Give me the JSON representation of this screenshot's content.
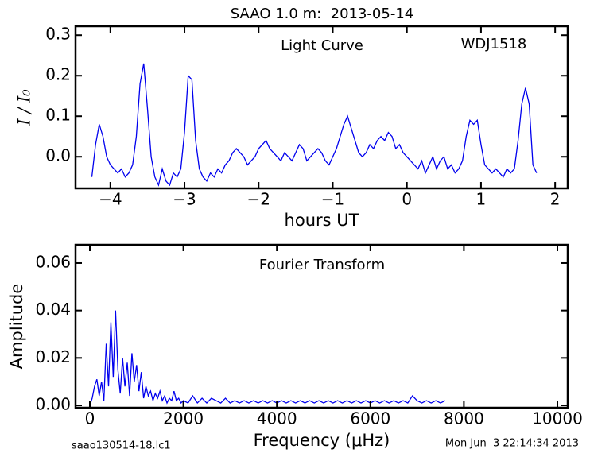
{
  "title": "SAAO 1.0 m:  2013-05-14",
  "footer": {
    "left": "saao130514-18.lc1",
    "right": "Mon Jun  3 22:14:34 2013"
  },
  "chart_data": [
    {
      "type": "line",
      "xlabel": "hours UT",
      "ylabel": "I / I₀",
      "annotations": [
        "Light Curve",
        "WDJ1518"
      ],
      "color": "#0000ee",
      "xlim": [
        -4.47,
        2.17
      ],
      "ylim": [
        -0.078,
        0.322
      ],
      "xticks": [
        {
          "value": -4,
          "label": "−4"
        },
        {
          "value": -3,
          "label": "−3"
        },
        {
          "value": -2,
          "label": "−2"
        },
        {
          "value": -1,
          "label": "−1"
        },
        0,
        1,
        2
      ],
      "yticks": [
        {
          "value": 0,
          "label": "0.0"
        },
        0.1,
        0.2,
        0.3
      ],
      "x": [
        -4.25,
        -4.2,
        -4.15,
        -4.1,
        -4.05,
        -4,
        -3.95,
        -3.9,
        -3.85,
        -3.8,
        -3.75,
        -3.7,
        -3.65,
        -3.6,
        -3.55,
        -3.5,
        -3.45,
        -3.4,
        -3.35,
        -3.3,
        -3.25,
        -3.2,
        -3.15,
        -3.1,
        -3.05,
        -3,
        -2.95,
        -2.9,
        -2.85,
        -2.8,
        -2.75,
        -2.7,
        -2.65,
        -2.6,
        -2.55,
        -2.5,
        -2.45,
        -2.4,
        -2.35,
        -2.3,
        -2.25,
        -2.2,
        -2.15,
        -2.1,
        -2.05,
        -2,
        -1.95,
        -1.9,
        -1.85,
        -1.8,
        -1.75,
        -1.7,
        -1.65,
        -1.6,
        -1.55,
        -1.5,
        -1.45,
        -1.4,
        -1.35,
        -1.3,
        -1.25,
        -1.2,
        -1.15,
        -1.1,
        -1.05,
        -1,
        -0.95,
        -0.9,
        -0.85,
        -0.8,
        -0.75,
        -0.7,
        -0.65,
        -0.6,
        -0.55,
        -0.5,
        -0.45,
        -0.4,
        -0.35,
        -0.3,
        -0.25,
        -0.2,
        -0.15,
        -0.1,
        -0.05,
        0,
        0.05,
        0.1,
        0.15,
        0.2,
        0.25,
        0.3,
        0.35,
        0.4,
        0.45,
        0.5,
        0.55,
        0.6,
        0.65,
        0.7,
        0.75,
        0.8,
        0.85,
        0.9,
        0.95,
        1,
        1.05,
        1.1,
        1.15,
        1.2,
        1.25,
        1.3,
        1.35,
        1.4,
        1.45,
        1.5,
        1.55,
        1.6,
        1.65,
        1.7,
        1.75
      ],
      "values": [
        -0.05,
        0.03,
        0.08,
        0.05,
        0,
        -0.02,
        -0.03,
        -0.04,
        -0.03,
        -0.05,
        -0.04,
        -0.02,
        0.05,
        0.18,
        0.23,
        0.12,
        0,
        -0.05,
        -0.07,
        -0.03,
        -0.06,
        -0.07,
        -0.04,
        -0.05,
        -0.03,
        0.06,
        0.2,
        0.19,
        0.04,
        -0.03,
        -0.05,
        -0.06,
        -0.04,
        -0.05,
        -0.03,
        -0.04,
        -0.02,
        -0.01,
        0.01,
        0.02,
        0.01,
        0,
        -0.02,
        -0.01,
        0,
        0.02,
        0.03,
        0.04,
        0.02,
        0.01,
        0,
        -0.01,
        0.01,
        0,
        -0.01,
        0.01,
        0.03,
        0.02,
        -0.01,
        0,
        0.01,
        0.02,
        0.01,
        -0.01,
        -0.02,
        0,
        0.02,
        0.05,
        0.08,
        0.1,
        0.07,
        0.04,
        0.01,
        0,
        0.01,
        0.03,
        0.02,
        0.04,
        0.05,
        0.04,
        0.06,
        0.05,
        0.02,
        0.03,
        0.01,
        0,
        -0.01,
        -0.02,
        -0.03,
        -0.01,
        -0.04,
        -0.02,
        0,
        -0.03,
        -0.01,
        0,
        -0.03,
        -0.02,
        -0.04,
        -0.03,
        -0.01,
        0.05,
        0.09,
        0.08,
        0.09,
        0.03,
        -0.02,
        -0.03,
        -0.04,
        -0.03,
        -0.04,
        -0.05,
        -0.03,
        -0.04,
        -0.03,
        0.04,
        0.13,
        0.17,
        0.13,
        -0.02,
        -0.04
      ]
    },
    {
      "type": "line",
      "xlabel": "Frequency (μHz)",
      "ylabel": "Amplitude",
      "annotations": [
        "Fourier Transform"
      ],
      "color": "#0000ee",
      "xlim": [
        -306,
        10221
      ],
      "ylim": [
        -0.001,
        0.0677
      ],
      "xticks": [
        0,
        2000,
        4000,
        6000,
        8000,
        10000
      ],
      "yticks": [
        {
          "value": 0,
          "label": "0.00"
        },
        {
          "value": 0.02,
          "label": "0.02"
        },
        {
          "value": 0.04,
          "label": "0.04"
        },
        {
          "value": 0.06,
          "label": "0.06"
        }
      ],
      "x": [
        0,
        50,
        100,
        150,
        200,
        250,
        300,
        350,
        400,
        450,
        500,
        550,
        600,
        650,
        700,
        750,
        800,
        850,
        900,
        950,
        1000,
        1050,
        1100,
        1150,
        1200,
        1250,
        1300,
        1350,
        1400,
        1450,
        1500,
        1550,
        1600,
        1650,
        1700,
        1750,
        1800,
        1850,
        1900,
        1950,
        2000,
        2100,
        2200,
        2300,
        2400,
        2500,
        2600,
        2700,
        2800,
        2900,
        3000,
        3100,
        3200,
        3300,
        3400,
        3500,
        3600,
        3700,
        3800,
        3900,
        4000,
        4100,
        4200,
        4300,
        4400,
        4500,
        4600,
        4700,
        4800,
        4900,
        5000,
        5100,
        5200,
        5300,
        5400,
        5500,
        5600,
        5700,
        5800,
        5900,
        6000,
        6100,
        6200,
        6300,
        6400,
        6500,
        6600,
        6700,
        6800,
        6900,
        7000,
        7100,
        7200,
        7300,
        7400,
        7500,
        7600
      ],
      "values": [
        0,
        0.003,
        0.008,
        0.011,
        0.004,
        0.01,
        0.002,
        0.026,
        0.008,
        0.035,
        0.012,
        0.04,
        0.015,
        0.005,
        0.02,
        0.008,
        0.018,
        0.004,
        0.022,
        0.01,
        0.017,
        0.006,
        0.014,
        0.003,
        0.008,
        0.004,
        0.006,
        0.002,
        0.005,
        0.003,
        0.006,
        0.002,
        0.004,
        0.001,
        0.003,
        0.002,
        0.006,
        0.002,
        0.003,
        0.001,
        0.002,
        0.001,
        0.004,
        0.001,
        0.003,
        0.001,
        0.003,
        0.002,
        0.001,
        0.003,
        0.001,
        0.002,
        0.001,
        0.002,
        0.001,
        0.002,
        0.001,
        0.002,
        0.001,
        0.002,
        0.001,
        0.002,
        0.001,
        0.002,
        0.001,
        0.002,
        0.001,
        0.002,
        0.001,
        0.002,
        0.001,
        0.002,
        0.001,
        0.002,
        0.001,
        0.002,
        0.001,
        0.002,
        0.001,
        0.002,
        0.001,
        0.002,
        0.001,
        0.002,
        0.001,
        0.002,
        0.001,
        0.002,
        0.001,
        0.004,
        0.002,
        0.001,
        0.002,
        0.001,
        0.002,
        0.001,
        0.002
      ]
    }
  ]
}
